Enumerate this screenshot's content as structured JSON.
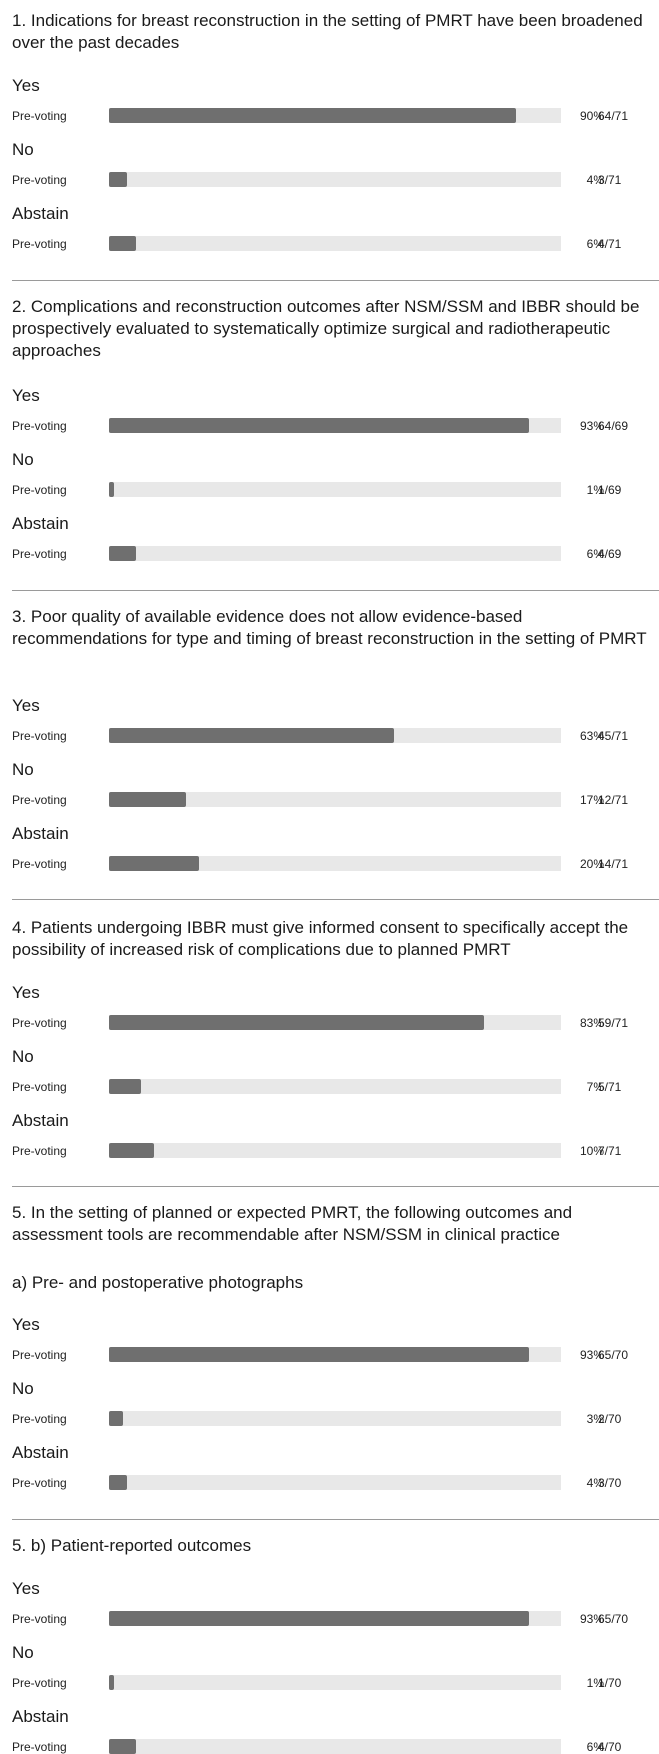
{
  "chart_data": {
    "type": "bar",
    "orientation": "horizontal",
    "xlim": [
      0,
      100
    ],
    "row_label": "Pre-voting",
    "questions": [
      {
        "title": "1. Indications for breast reconstruction in the setting of PMRT have been broadened over the past decades",
        "options": [
          {
            "label": "Yes",
            "percent": 90,
            "count": "64/71"
          },
          {
            "label": "No",
            "percent": 4,
            "count": "3/71"
          },
          {
            "label": "Abstain",
            "percent": 6,
            "count": "4/71"
          }
        ]
      },
      {
        "title": "2. Complications and reconstruction outcomes after NSM/SSM and IBBR should be prospectively evaluated to systematically optimize surgical and radiotherapeutic approaches",
        "options": [
          {
            "label": "Yes",
            "percent": 93,
            "count": "64/69"
          },
          {
            "label": "No",
            "percent": 1,
            "count": "1/69"
          },
          {
            "label": "Abstain",
            "percent": 6,
            "count": "4/69"
          }
        ]
      },
      {
        "title": "3. Poor quality of available evidence does not allow evidence-based recommendations for type and timing of breast reconstruction in the setting of PMRT",
        "options": [
          {
            "label": "Yes",
            "percent": 63,
            "count": "45/71"
          },
          {
            "label": "No",
            "percent": 17,
            "count": "12/71"
          },
          {
            "label": "Abstain",
            "percent": 20,
            "count": "14/71"
          }
        ]
      },
      {
        "title": "4. Patients undergoing IBBR must give informed consent to specifically accept the possibility of increased risk of complications due to planned PMRT",
        "options": [
          {
            "label": "Yes",
            "percent": 83,
            "count": "59/71"
          },
          {
            "label": "No",
            "percent": 7,
            "count": "5/71"
          },
          {
            "label": "Abstain",
            "percent": 10,
            "count": "7/71"
          }
        ]
      },
      {
        "title": "5. In the setting of planned or expected PMRT, the following outcomes and assessment tools are recommendable after NSM/SSM in clinical practice",
        "subtitle": "a) Pre- and postoperative photographs",
        "options": [
          {
            "label": "Yes",
            "percent": 93,
            "count": "65/70"
          },
          {
            "label": "No",
            "percent": 3,
            "count": "2/70"
          },
          {
            "label": "Abstain",
            "percent": 4,
            "count": "3/70"
          }
        ]
      },
      {
        "title": "5. b) Patient-reported outcomes",
        "options": [
          {
            "label": "Yes",
            "percent": 93,
            "count": "65/70"
          },
          {
            "label": "No",
            "percent": 1,
            "count": "1/70"
          },
          {
            "label": "Abstain",
            "percent": 6,
            "count": "4/70"
          }
        ]
      }
    ]
  }
}
